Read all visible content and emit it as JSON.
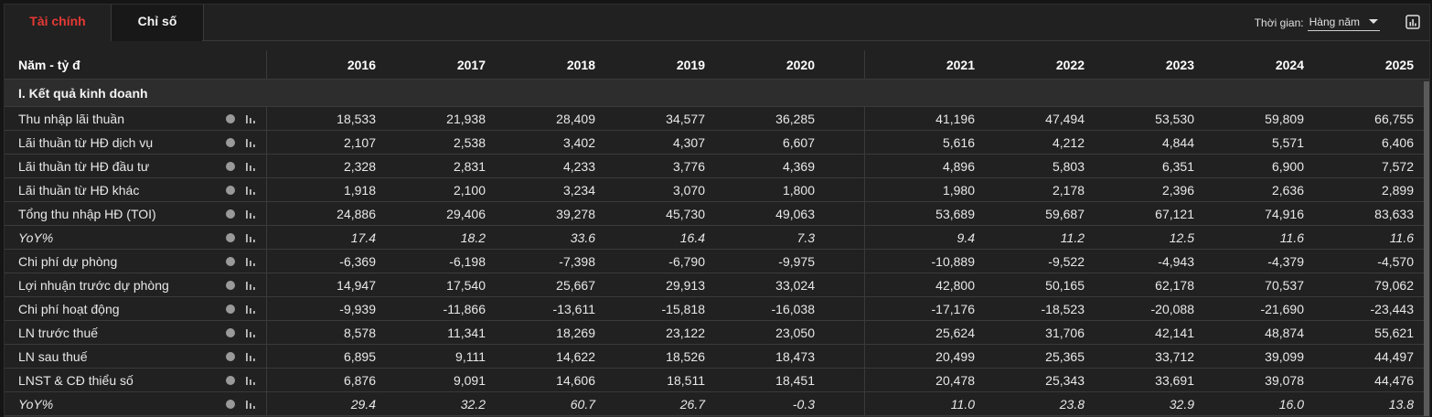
{
  "tabs": {
    "finance": "Tài chính",
    "ratios": "Chỉ số"
  },
  "period": {
    "label": "Thời gian:",
    "selected": "Hàng năm"
  },
  "icons": {
    "info": "info-dot-icon",
    "chart": "bar-chart-icon",
    "report": "report-chart-icon"
  },
  "colors": {
    "active_tab": "#e53935",
    "background": "#212121",
    "section_bg": "#2d2d2d"
  },
  "table": {
    "header_label": "Năm - tỷ đ",
    "years": [
      "2016",
      "2017",
      "2018",
      "2019",
      "2020",
      "2021",
      "2022",
      "2023",
      "2024",
      "2025"
    ],
    "section_title": "I. Kết quả kinh doanh",
    "rows": [
      {
        "label": "Thu nhập lãi thuần",
        "values": [
          "18,533",
          "21,938",
          "28,409",
          "34,577",
          "36,285",
          "41,196",
          "47,494",
          "53,530",
          "59,809",
          "66,755"
        ]
      },
      {
        "label": "Lãi thuần từ HĐ dịch vụ",
        "values": [
          "2,107",
          "2,538",
          "3,402",
          "4,307",
          "6,607",
          "5,616",
          "4,212",
          "4,844",
          "5,571",
          "6,406"
        ]
      },
      {
        "label": "Lãi thuần từ HĐ đầu tư",
        "values": [
          "2,328",
          "2,831",
          "4,233",
          "3,776",
          "4,369",
          "4,896",
          "5,803",
          "6,351",
          "6,900",
          "7,572"
        ]
      },
      {
        "label": "Lãi thuần từ HĐ khác",
        "values": [
          "1,918",
          "2,100",
          "3,234",
          "3,070",
          "1,800",
          "1,980",
          "2,178",
          "2,396",
          "2,636",
          "2,899"
        ]
      },
      {
        "label": "Tổng thu nhập HĐ (TOI)",
        "values": [
          "24,886",
          "29,406",
          "39,278",
          "45,730",
          "49,063",
          "53,689",
          "59,687",
          "67,121",
          "74,916",
          "83,633"
        ]
      },
      {
        "label": "YoY%",
        "italic": true,
        "values": [
          "17.4",
          "18.2",
          "33.6",
          "16.4",
          "7.3",
          "9.4",
          "11.2",
          "12.5",
          "11.6",
          "11.6"
        ]
      },
      {
        "label": "Chi phí dự phòng",
        "values": [
          "-6,369",
          "-6,198",
          "-7,398",
          "-6,790",
          "-9,975",
          "-10,889",
          "-9,522",
          "-4,943",
          "-4,379",
          "-4,570"
        ]
      },
      {
        "label": "Lợi nhuận trước dự phòng",
        "values": [
          "14,947",
          "17,540",
          "25,667",
          "29,913",
          "33,024",
          "42,800",
          "50,165",
          "62,178",
          "70,537",
          "79,062"
        ]
      },
      {
        "label": "Chi phí hoạt động",
        "values": [
          "-9,939",
          "-11,866",
          "-13,611",
          "-15,818",
          "-16,038",
          "-17,176",
          "-18,523",
          "-20,088",
          "-21,690",
          "-23,443"
        ]
      },
      {
        "label": "LN trước thuế",
        "values": [
          "8,578",
          "11,341",
          "18,269",
          "23,122",
          "23,050",
          "25,624",
          "31,706",
          "42,141",
          "48,874",
          "55,621"
        ]
      },
      {
        "label": "LN sau thuế",
        "values": [
          "6,895",
          "9,111",
          "14,622",
          "18,526",
          "18,473",
          "20,499",
          "25,365",
          "33,712",
          "39,099",
          "44,497"
        ]
      },
      {
        "label": "LNST & CĐ thiểu số",
        "values": [
          "6,876",
          "9,091",
          "14,606",
          "18,511",
          "18,451",
          "20,478",
          "25,343",
          "33,691",
          "39,078",
          "44,476"
        ]
      },
      {
        "label": "YoY%",
        "italic": true,
        "values": [
          "29.4",
          "32.2",
          "60.7",
          "26.7",
          "-0.3",
          "11.0",
          "23.8",
          "32.9",
          "16.0",
          "13.8"
        ]
      }
    ]
  }
}
